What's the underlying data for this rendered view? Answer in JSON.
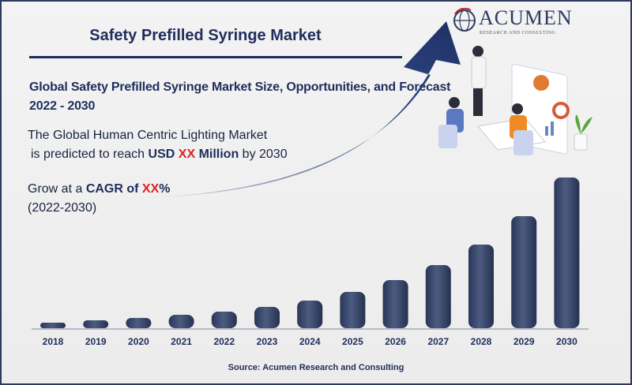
{
  "title": "Safety Prefilled Syringe Market",
  "subtitle": "Global Safety Prefilled Syringe Market Size, Opportunities, and Forecast 2022 - 2030",
  "description": {
    "line1": "The Global Human Centric Lighting Market",
    "pre": "is predicted to reach ",
    "usd": "USD",
    "xx": "XX",
    "million": "Million",
    "post": " by 2030"
  },
  "cagr": {
    "pre": "Grow at a ",
    "label": "CAGR of",
    "xx": "XX",
    "pct": "%",
    "period": "(2022-2030)"
  },
  "logo": {
    "name": "ACUMEN",
    "tagline": "RESEARCH AND CONSULTING"
  },
  "source": "Source: Acumen Research and Consulting",
  "colors": {
    "bar": "#3a4a6e",
    "text": "#1f2d5c",
    "highlight": "#e02020"
  },
  "chart_data": {
    "type": "bar",
    "categories": [
      "2018",
      "2019",
      "2020",
      "2021",
      "2022",
      "2023",
      "2024",
      "2025",
      "2026",
      "2027",
      "2028",
      "2029",
      "2030"
    ],
    "values": [
      7,
      10,
      13,
      17,
      21,
      27,
      35,
      46,
      61,
      80,
      106,
      142,
      191
    ],
    "value_note_unprinted": true,
    "trend_arrow": "upward",
    "grid": false
  }
}
